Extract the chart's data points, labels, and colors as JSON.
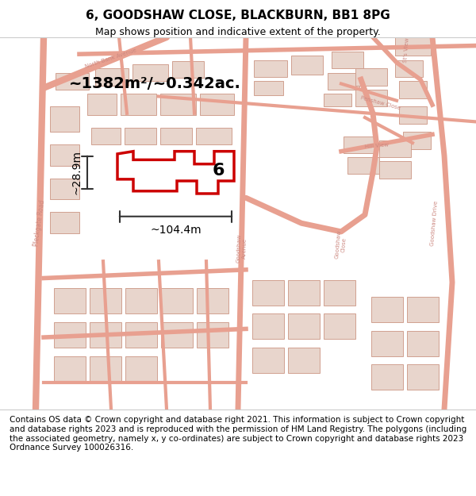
{
  "title": "6, GOODSHAW CLOSE, BLACKBURN, BB1 8PG",
  "subtitle": "Map shows position and indicative extent of the property.",
  "footer": "Contains OS data © Crown copyright and database right 2021. This information is subject to Crown copyright and database rights 2023 and is reproduced with the permission of HM Land Registry. The polygons (including the associated geometry, namely x, y co-ordinates) are subject to Crown copyright and database rights 2023 Ordnance Survey 100026316.",
  "area_label": "~1382m²/~0.342ac.",
  "width_label": "~104.4m",
  "height_label": "~28.9m",
  "number_label": "6",
  "map_bg": "#f5e8e0",
  "road_color": "#e8a090",
  "building_color": "#e8d5cc",
  "building_edge": "#d0a090",
  "highlight_color": "#cc0000",
  "title_fontsize": 11,
  "subtitle_fontsize": 9,
  "footer_fontsize": 7.5
}
